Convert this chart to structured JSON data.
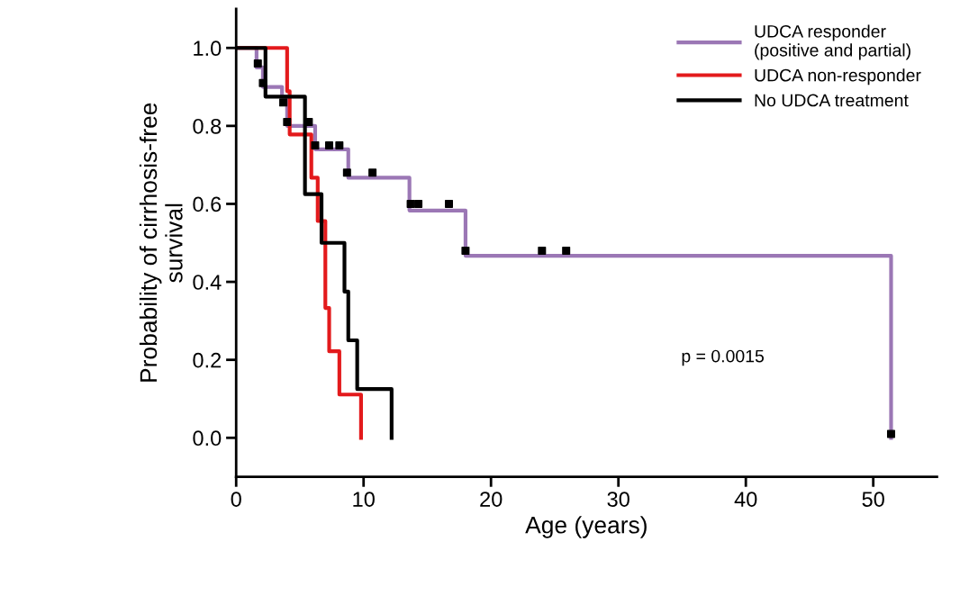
{
  "chart_data": {
    "type": "step",
    "xlabel": "Age (years)",
    "ylabel": "Probability of cirrhosis-free\nsurvival",
    "xlim": [
      0,
      55
    ],
    "ylim": [
      -0.1,
      1.1
    ],
    "xticks": [
      0,
      10,
      20,
      30,
      40,
      50
    ],
    "yticks": [
      {
        "value": 0,
        "label": "0.0"
      },
      {
        "value": 0.2,
        "label": "0.2"
      },
      {
        "value": 0.4,
        "label": "0.4"
      },
      {
        "value": 0.6,
        "label": "0.6"
      },
      {
        "value": 0.8,
        "label": "0.8"
      },
      {
        "value": 1,
        "label": "1.0"
      }
    ],
    "grid": false,
    "legend": "top right",
    "marker": "none",
    "line_style": "solid",
    "annotations": [
      "p = 0.0015"
    ],
    "series": [
      {
        "name": "UDCA responder\n(positive and partial)",
        "color": "#9b77b5",
        "x": [
          0,
          1.6,
          2.1,
          3.6,
          4.0,
          6.2,
          8.8,
          13.6,
          18.0,
          51.4
        ],
        "values": [
          1,
          0.95,
          0.9,
          0.875,
          0.8,
          0.74,
          0.667,
          0.583,
          0.467,
          0
        ]
      },
      {
        "name": "UDCA non-responder",
        "color": "#e31a1c",
        "x": [
          0,
          4.0,
          4.2,
          5.9,
          6.4,
          7.0,
          7.3,
          8.1,
          9.8
        ],
        "values": [
          1,
          0.889,
          0.778,
          0.667,
          0.556,
          0.333,
          0.222,
          0.111,
          0
        ]
      },
      {
        "name": "No UDCA treatment",
        "color": "#000000",
        "x": [
          0,
          2.3,
          5.4,
          6.7,
          8.5,
          8.8,
          9.5,
          12.2
        ],
        "values": [
          1,
          0.875,
          0.625,
          0.5,
          0.375,
          0.25,
          0.125,
          0
        ]
      },
      {
        "type": "scatter",
        "marker": "square",
        "color": "#000000",
        "x": [
          1.7,
          2.1,
          3.7,
          4.0,
          5.7,
          6.2,
          7.3,
          8.1,
          8.7,
          10.7,
          13.7,
          14.3,
          16.7,
          18.0,
          24.0,
          25.9,
          51.4
        ],
        "values": [
          0.96,
          0.91,
          0.86,
          0.81,
          0.81,
          0.75,
          0.75,
          0.75,
          0.68,
          0.68,
          0.6,
          0.6,
          0.6,
          0.48,
          0.48,
          0.48,
          0.01
        ]
      }
    ]
  }
}
